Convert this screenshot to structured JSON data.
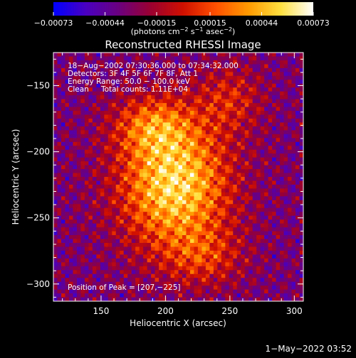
{
  "chart_data": {
    "type": "heatmap",
    "title": "Reconstructed RHESSI Image",
    "xlabel": "Heliocentric X (arcsec)",
    "ylabel": "Heliocentric Y (arcsec)",
    "xlim": [
      113,
      307
    ],
    "ylim": [
      -313,
      -125
    ],
    "x_ticks": [
      150,
      200,
      250,
      300
    ],
    "y_ticks": [
      -150,
      -200,
      -250,
      -300
    ],
    "x_tick_labels": [
      "150",
      "200",
      "250",
      "300"
    ],
    "y_tick_labels": [
      "−150",
      "−200",
      "−250",
      "−300"
    ],
    "peak": {
      "x": 207,
      "y": -225
    },
    "colorbar": {
      "range": [
        -0.00073,
        0.00073
      ],
      "ticks": [
        -0.00073,
        -0.00044,
        -0.00015,
        0.00015,
        0.00044,
        0.00073
      ],
      "tick_labels": [
        "−0.00073",
        "−0.00044",
        "−0.00015",
        "0.00015",
        "0.00044",
        "0.00073"
      ],
      "stops": [
        "#0000ff",
        "#4a00c0",
        "#6a0080",
        "#9a0030",
        "#d01000",
        "#ff5000",
        "#ff9a00",
        "#ffe040",
        "#ffffff"
      ]
    },
    "annotations": {
      "time": "18−Aug−2002 07:30:36.000 to 07:34:32.000",
      "detectors": "Detectors: 3F 4F 5F 6F 7F 8F, Att 1",
      "energy": "Energy Range: 50.0 − 100.0 keV",
      "clean": "Clean",
      "total_counts": "Total counts: 1.11E+04",
      "peak_label": "Position of Peak = [207,−225]"
    },
    "timestamp": "1−May−2022 03:52"
  }
}
